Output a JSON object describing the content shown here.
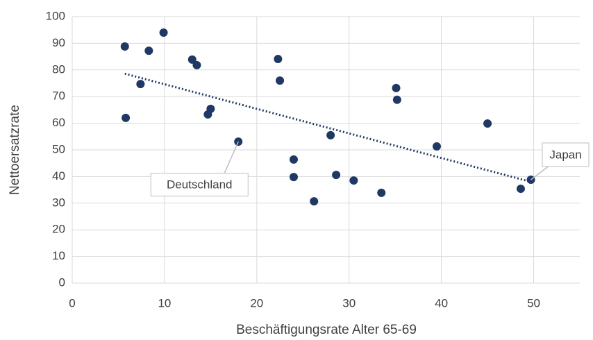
{
  "chart_data": {
    "type": "scatter",
    "x_label": "Beschäftigungsrate Alter 65-69",
    "y_label": "Nettoersatzrate",
    "series": [
      {
        "color": "#1f3864",
        "x": [
          5.7,
          8.3,
          9.9,
          13.0,
          13.5,
          7.4,
          5.8,
          15.0,
          14.7,
          18.0,
          22.3,
          22.5,
          24.0,
          24.0,
          26.2,
          28.0,
          28.6,
          30.5,
          33.5,
          35.1,
          35.2,
          39.5,
          45.0,
          48.6,
          49.7
        ],
        "values": [
          88.8,
          87.2,
          94.0,
          83.9,
          81.8,
          74.7,
          62.0,
          65.4,
          63.3,
          53.1,
          84.1,
          76.0,
          46.4,
          39.8,
          30.7,
          55.5,
          40.6,
          38.5,
          33.9,
          73.2,
          68.8,
          51.3,
          59.9,
          35.4,
          38.8
        ]
      }
    ],
    "trendline": {
      "x": [
        5.7,
        49.7
      ],
      "values": [
        78.6,
        38.0
      ]
    },
    "annotations": [
      {
        "text": "Deutschland",
        "x": 18.0,
        "y": 53.1
      },
      {
        "text": "Japan",
        "x": 49.7,
        "y": 38.8
      }
    ],
    "xlim": [
      0,
      55
    ],
    "xticks": [
      0,
      10,
      20,
      30,
      40,
      50
    ],
    "ylim": [
      0,
      100
    ],
    "yticks": [
      0,
      10,
      20,
      30,
      40,
      50,
      60,
      70,
      80,
      90,
      100
    ],
    "grid": true
  }
}
